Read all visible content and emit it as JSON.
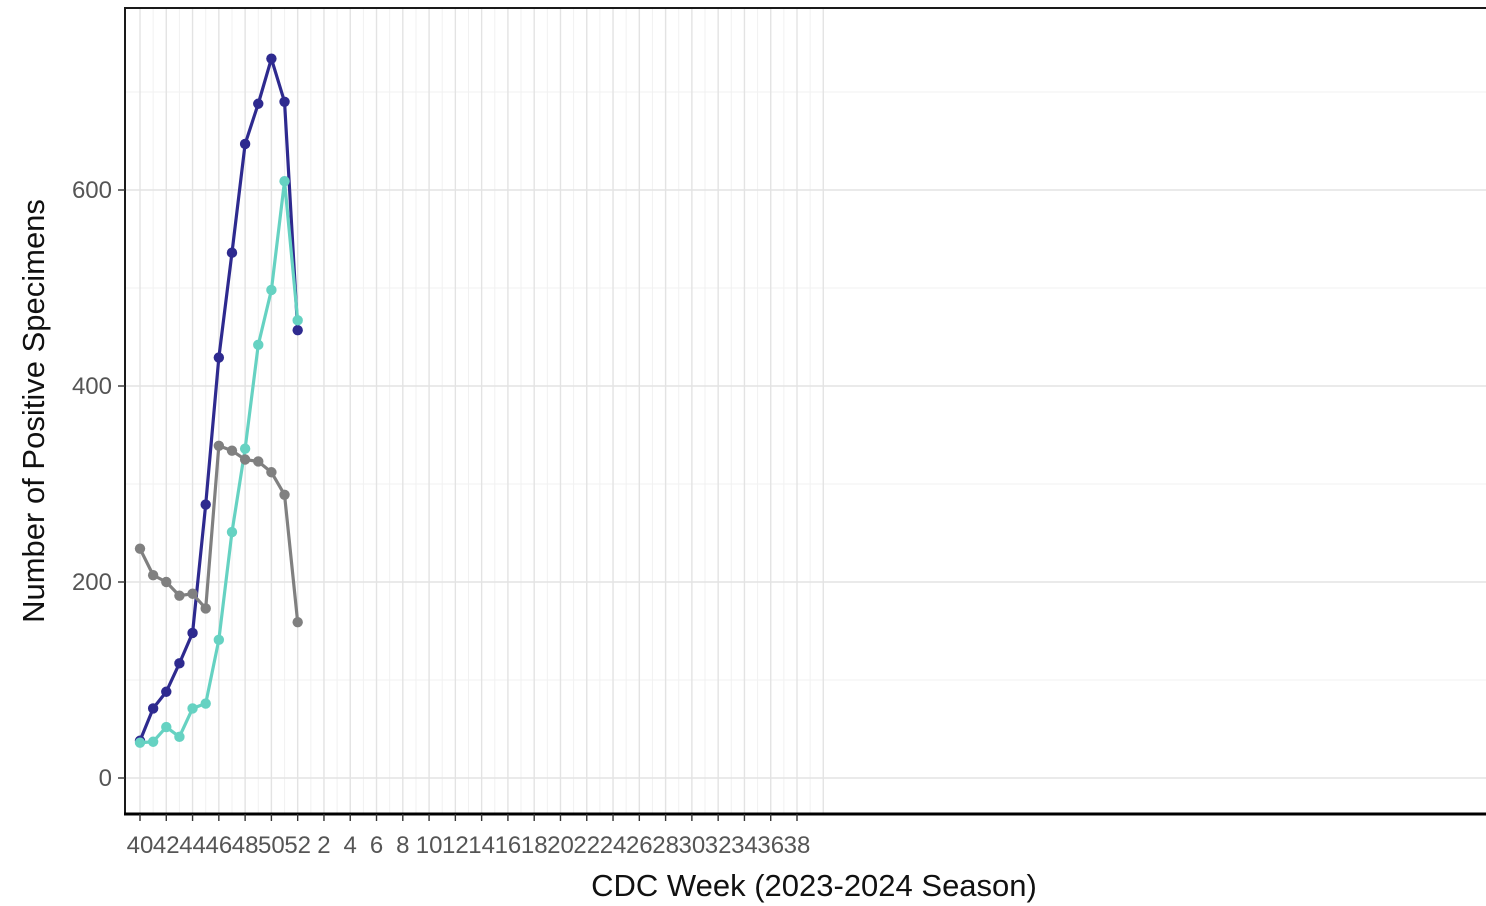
{
  "chart_data": {
    "type": "line",
    "title": "",
    "xlabel": "CDC Week (2023-2024 Season)",
    "ylabel": "Number of Positive Specimens",
    "x_tick_labels": [
      "40",
      "42",
      "44",
      "46",
      "48",
      "50",
      "52",
      "2",
      "4",
      "6",
      "8",
      "10",
      "12",
      "14",
      "16",
      "18",
      "20",
      "22",
      "24",
      "26",
      "28",
      "30",
      "32",
      "34",
      "36",
      "38"
    ],
    "y_ticks": [
      0,
      200,
      400,
      600
    ],
    "ylim": [
      -35,
      785
    ],
    "grid": true,
    "legend": "none",
    "x_weeks": [
      40,
      41,
      42,
      43,
      44,
      45,
      46,
      47,
      48,
      49,
      50,
      51,
      52
    ],
    "series": [
      {
        "color": "#2e2a8f",
        "values": [
          38,
          71,
          88,
          117,
          148,
          279,
          429,
          536,
          647,
          688,
          734,
          690,
          457
        ]
      },
      {
        "color": "#66d2c2",
        "values": [
          36,
          37,
          52,
          42,
          71,
          76,
          141,
          251,
          336,
          442,
          498,
          609,
          467
        ]
      },
      {
        "color": "#808080",
        "values": [
          234,
          207,
          200,
          186,
          188,
          173,
          339,
          334,
          325,
          323,
          312,
          289,
          159
        ]
      }
    ]
  }
}
